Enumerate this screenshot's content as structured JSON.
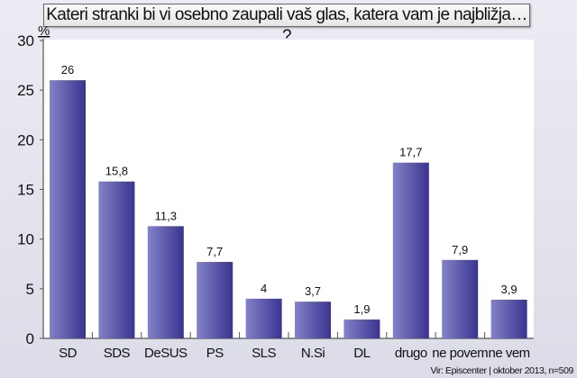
{
  "chart_data": {
    "type": "bar",
    "title": "Kateri stranki bi vi osebno zaupali vaš glas, katera vam je najbližja… ?",
    "ylabel": "%",
    "xlabel": "",
    "ylim": [
      0,
      30
    ],
    "yticks": [
      0,
      5,
      10,
      15,
      20,
      25,
      30
    ],
    "categories": [
      "SD",
      "SDS",
      "DeSUS",
      "PS",
      "SLS",
      "N.Si",
      "DL",
      "drugo",
      "ne povem",
      "ne vem"
    ],
    "values": [
      26,
      15.8,
      11.3,
      7.7,
      4,
      3.7,
      1.9,
      17.7,
      7.9,
      3.9
    ],
    "value_labels": [
      "26",
      "15,8",
      "11,3",
      "7,7",
      "4",
      "3,7",
      "1,9",
      "17,7",
      "7,9",
      "3,9"
    ],
    "grid": false,
    "bar_color_light": "#8482c8",
    "bar_color_dark": "#3a3490"
  },
  "source": "Vir: Episcenter | oktober 2013, n=509"
}
